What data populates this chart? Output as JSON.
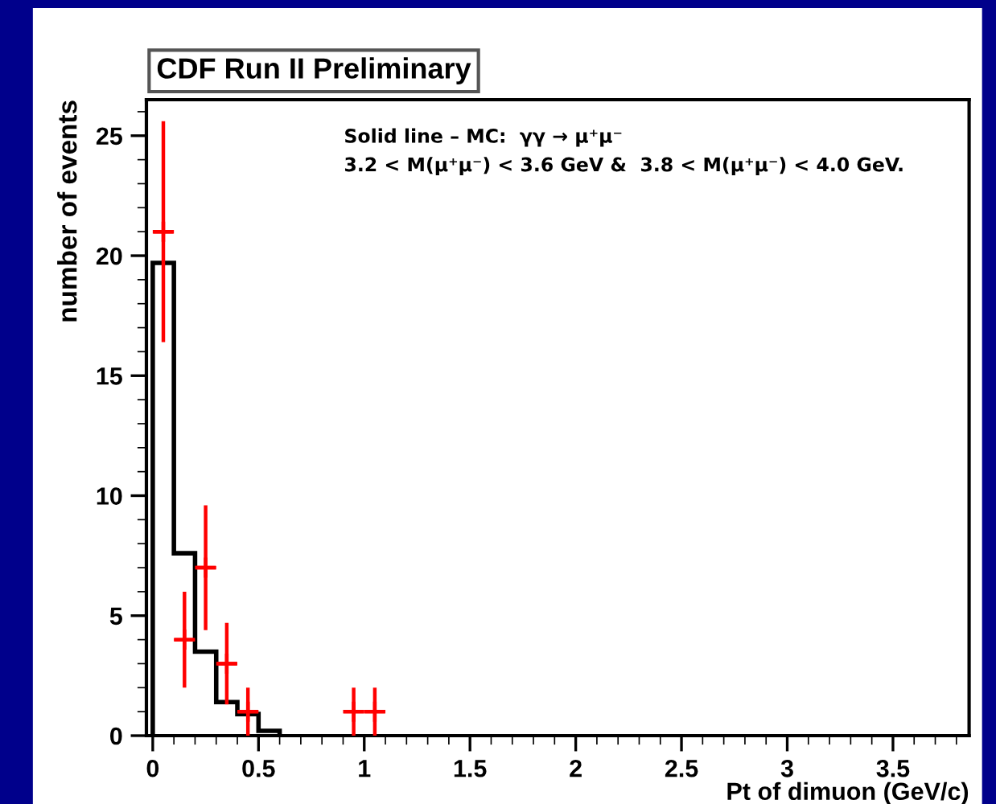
{
  "chart_data": {
    "type": "histogram",
    "title": "CDF Run II Preliminary",
    "xlabel": "Pt of dimuon (GeV/c)",
    "ylabel": "number of events",
    "annotations": [
      "Solid line – MC:  γγ → μ⁺μ⁻",
      "3.2 < M(μ⁺μ⁻) < 3.6 GeV &  3.8 < M(μ⁺μ⁻) < 4.0 GeV."
    ],
    "series": [
      {
        "color": "#000000",
        "bins": [
          0,
          0.1,
          0.2,
          0.3,
          0.4,
          0.5,
          0.6
        ],
        "values": [
          19.7,
          7.6,
          3.5,
          1.4,
          0.9,
          0.2
        ]
      },
      {
        "type": "scatter",
        "color": "#ff0000",
        "marker": "cross",
        "x": [
          0.05,
          0.15,
          0.25,
          0.35,
          0.45,
          0.95,
          1.05
        ],
        "values": [
          21,
          4,
          7,
          3,
          1,
          1,
          1
        ],
        "errors": [
          4.6,
          2,
          2.6,
          1.7,
          1,
          1,
          1
        ],
        "xerrors": [
          0.05,
          0.05,
          0.05,
          0.05,
          0.05,
          0.05,
          0.05
        ]
      }
    ],
    "xlim": [
      -0.03,
      3.86
    ],
    "ylim": [
      0,
      26.5
    ],
    "xticks": [
      0,
      0.5,
      1,
      1.5,
      2,
      2.5,
      3,
      3.5
    ],
    "yticks": [
      0,
      5,
      10,
      15,
      20,
      25
    ],
    "grid": false,
    "legend": false
  }
}
